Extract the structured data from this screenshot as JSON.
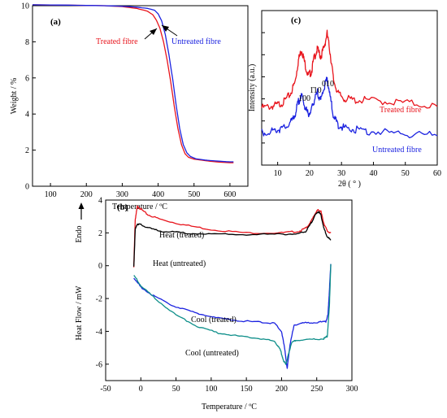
{
  "colors": {
    "red": "#e8141c",
    "blue": "#1c23e0",
    "black": "#000000",
    "teal": "#0f8f8a",
    "axis": "#000000"
  },
  "chart_data": [
    {
      "id": "a",
      "panel_label": "(a)",
      "type": "line",
      "xlabel": "Temperature / ºC",
      "ylabel": "Weight / %",
      "xlim": [
        50,
        650
      ],
      "ylim": [
        0,
        10
      ],
      "xticks": [
        100,
        200,
        300,
        400,
        500,
        600
      ],
      "yticks": [
        0,
        2,
        4,
        6,
        8,
        10
      ],
      "series": [
        {
          "name": "Treated fibre",
          "color_key": "red",
          "x": [
            50,
            150,
            250,
            300,
            340,
            370,
            385,
            395,
            405,
            415,
            425,
            435,
            445,
            455,
            465,
            475,
            485,
            500,
            530,
            560,
            600,
            610
          ],
          "y": [
            10.05,
            10.03,
            10.0,
            9.95,
            9.85,
            9.7,
            9.5,
            9.2,
            8.75,
            8.0,
            7.0,
            5.8,
            4.4,
            3.2,
            2.3,
            1.8,
            1.6,
            1.5,
            1.42,
            1.35,
            1.3,
            1.3
          ]
        },
        {
          "name": "Untreated fibre",
          "color_key": "blue",
          "x": [
            50,
            150,
            250,
            300,
            340,
            370,
            390,
            400,
            410,
            420,
            430,
            440,
            450,
            460,
            470,
            480,
            490,
            505,
            530,
            560,
            600,
            610
          ],
          "y": [
            10.05,
            10.03,
            10.0,
            9.97,
            9.92,
            9.85,
            9.75,
            9.55,
            9.15,
            8.4,
            7.3,
            6.0,
            4.5,
            3.2,
            2.3,
            1.85,
            1.65,
            1.52,
            1.45,
            1.4,
            1.35,
            1.35
          ]
        }
      ],
      "annotations": [
        {
          "text": "Treated fibre",
          "color_key": "red"
        },
        {
          "text": "Untreated fibre",
          "color_key": "blue"
        }
      ]
    },
    {
      "id": "c",
      "panel_label": "(c)",
      "type": "line",
      "xlabel": "2θ ( ° )",
      "ylabel": "Intensity (a.u.)",
      "xlim": [
        5,
        60
      ],
      "ylim": [
        0,
        1
      ],
      "xticks": [
        10,
        20,
        30,
        40,
        50,
        60
      ],
      "series": [
        {
          "name": "Treated fibre",
          "color_key": "red",
          "x": [
            5,
            8,
            10,
            12,
            14,
            15.5,
            16.5,
            17.5,
            18.5,
            19.5,
            20.5,
            21.5,
            22.5,
            23.5,
            24.5,
            25.5,
            26.5,
            27.5,
            29,
            31,
            34,
            38,
            45,
            52,
            60
          ],
          "y": [
            0.37,
            0.38,
            0.39,
            0.41,
            0.46,
            0.54,
            0.68,
            0.75,
            0.66,
            0.58,
            0.6,
            0.7,
            0.75,
            0.7,
            0.76,
            0.85,
            0.72,
            0.55,
            0.46,
            0.43,
            0.42,
            0.42,
            0.41,
            0.4,
            0.38
          ]
        },
        {
          "name": "Untreated fibre",
          "color_key": "blue",
          "x": [
            5,
            8,
            10,
            12,
            14,
            15.5,
            16.5,
            17.5,
            18.5,
            19.5,
            20.5,
            21.5,
            22.5,
            23.5,
            24.5,
            25.5,
            26.5,
            27.5,
            29,
            31,
            34,
            38,
            45,
            52,
            60
          ],
          "y": [
            0.21,
            0.22,
            0.23,
            0.24,
            0.27,
            0.33,
            0.41,
            0.45,
            0.38,
            0.33,
            0.35,
            0.42,
            0.47,
            0.42,
            0.5,
            0.56,
            0.44,
            0.31,
            0.26,
            0.24,
            0.23,
            0.22,
            0.21,
            0.2,
            0.19
          ]
        }
      ],
      "peak_labels": [
        "100",
        "1̄10",
        "010"
      ],
      "legend": [
        {
          "text": "Treated fibre",
          "color_key": "red"
        },
        {
          "text": "Untreated fibre",
          "color_key": "blue"
        }
      ]
    },
    {
      "id": "b",
      "panel_label": "(b)",
      "type": "line",
      "xlabel": "Temperature / ºC",
      "ylabel": "Heat Flow / mW",
      "endo_label": "Endo",
      "xlim": [
        -50,
        300
      ],
      "ylim": [
        -7,
        4
      ],
      "xticks": [
        -50,
        0,
        50,
        100,
        150,
        200,
        250,
        300
      ],
      "yticks": [
        -6,
        -4,
        -2,
        0,
        2,
        4
      ],
      "series": [
        {
          "name": "Heat (treated)",
          "color_key": "red",
          "x": [
            -10,
            -8,
            -5,
            0,
            10,
            30,
            60,
            100,
            150,
            200,
            225,
            235,
            242,
            248,
            252,
            256,
            260,
            265,
            270
          ],
          "y": [
            -0.1,
            2.8,
            3.6,
            3.45,
            3.1,
            2.8,
            2.5,
            2.2,
            2.0,
            2.0,
            2.1,
            2.3,
            2.7,
            3.2,
            3.4,
            3.3,
            2.6,
            2.1,
            2.0
          ]
        },
        {
          "name": "Heat (untreated)",
          "color_key": "black",
          "x": [
            -10,
            -8,
            -5,
            0,
            10,
            30,
            60,
            100,
            150,
            200,
            225,
            235,
            242,
            248,
            252,
            256,
            260,
            265,
            270
          ],
          "y": [
            -0.1,
            2.2,
            2.55,
            2.5,
            2.3,
            2.1,
            2.0,
            1.92,
            1.9,
            1.92,
            1.95,
            2.1,
            2.6,
            3.1,
            3.3,
            3.1,
            2.3,
            1.75,
            1.55
          ]
        },
        {
          "name": "Cool (treated)",
          "color_key": "blue",
          "x": [
            -10,
            0,
            20,
            50,
            80,
            110,
            140,
            170,
            190,
            200,
            205,
            208,
            212,
            218,
            230,
            250,
            263,
            266,
            268,
            270
          ],
          "y": [
            -0.75,
            -1.3,
            -1.9,
            -2.5,
            -2.9,
            -3.2,
            -3.35,
            -3.45,
            -3.5,
            -4.0,
            -5.2,
            -6.3,
            -4.8,
            -3.6,
            -3.5,
            -3.45,
            -3.4,
            -3.0,
            -1.5,
            0.1
          ]
        },
        {
          "name": "Cool (untreated)",
          "color_key": "teal",
          "x": [
            -10,
            0,
            20,
            50,
            80,
            110,
            140,
            170,
            190,
            198,
            203,
            206,
            210,
            214,
            220,
            240,
            260,
            265,
            268,
            270
          ],
          "y": [
            -0.6,
            -1.2,
            -2.0,
            -3.0,
            -3.7,
            -4.1,
            -4.3,
            -4.45,
            -4.6,
            -5.1,
            -5.8,
            -6.0,
            -5.4,
            -4.7,
            -4.55,
            -4.5,
            -4.45,
            -4.3,
            -2.5,
            0.1
          ]
        }
      ],
      "annotations": [
        {
          "text": "Heat (treated)"
        },
        {
          "text": "Heat (untreated)"
        },
        {
          "text": "Cool (treated)"
        },
        {
          "text": "Cool (untreated)"
        }
      ]
    }
  ]
}
